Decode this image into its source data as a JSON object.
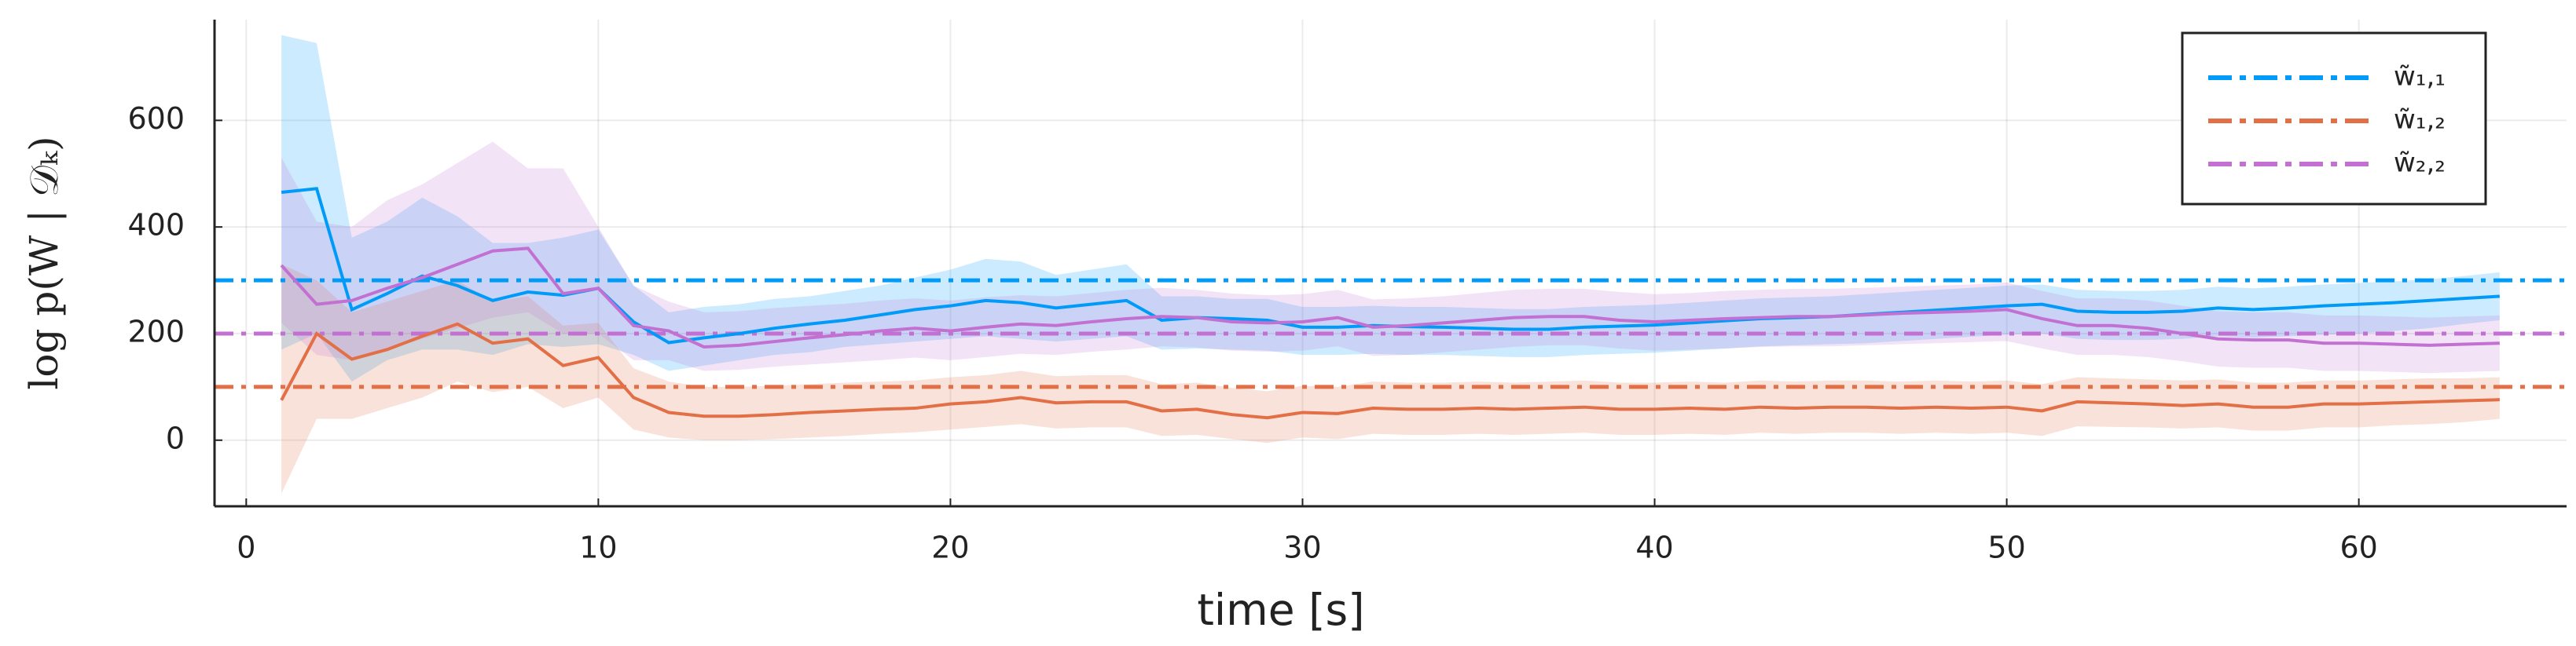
{
  "chart_data": {
    "type": "line",
    "xlabel": "time [s]",
    "ylabel": "log p(W | 𝒟ₖ)",
    "xlim": [
      -0.9,
      65.9
    ],
    "ylim": [
      -124,
      789
    ],
    "xticks": [
      0,
      10,
      20,
      30,
      40,
      50,
      60
    ],
    "yticks": [
      0,
      200,
      400,
      600
    ],
    "grid": true,
    "legend": "top-right",
    "x": [
      1,
      2,
      3,
      4,
      5,
      6,
      7,
      8,
      9,
      10,
      11,
      12,
      13,
      14,
      15,
      16,
      17,
      18,
      19,
      20,
      21,
      22,
      23,
      24,
      25,
      26,
      27,
      28,
      29,
      30,
      31,
      32,
      33,
      34,
      35,
      36,
      37,
      38,
      39,
      40,
      41,
      42,
      43,
      44,
      45,
      46,
      47,
      48,
      49,
      50,
      51,
      52,
      53,
      54,
      55,
      56,
      57,
      58,
      59,
      60,
      61,
      62,
      63,
      64
    ],
    "series": [
      {
        "color": "#009af9",
        "values": [
          465,
          472,
          245,
          275,
          308,
          290,
          262,
          278,
          272,
          285,
          222,
          183,
          192,
          200,
          210,
          218,
          225,
          235,
          245,
          252,
          262,
          258,
          248,
          255,
          262,
          225,
          230,
          228,
          225,
          212,
          212,
          215,
          213,
          212,
          210,
          208,
          208,
          212,
          214,
          216,
          220,
          224,
          228,
          230,
          232,
          236,
          240,
          244,
          248,
          252,
          255,
          242,
          240,
          240,
          242,
          248,
          245,
          248,
          252,
          255,
          258,
          262,
          266,
          270
        ],
        "upper": [
          760,
          745,
          380,
          410,
          455,
          420,
          370,
          370,
          380,
          395,
          290,
          240,
          250,
          255,
          265,
          270,
          280,
          290,
          305,
          320,
          340,
          335,
          310,
          320,
          330,
          270,
          270,
          265,
          265,
          250,
          250,
          252,
          250,
          250,
          248,
          246,
          246,
          250,
          252,
          254,
          258,
          262,
          266,
          268,
          270,
          274,
          278,
          282,
          286,
          290,
          292,
          282,
          280,
          280,
          282,
          288,
          285,
          288,
          292,
          295,
          298,
          302,
          308,
          315
        ],
        "lower": [
          170,
          200,
          110,
          150,
          170,
          170,
          160,
          180,
          175,
          180,
          160,
          130,
          140,
          150,
          160,
          165,
          175,
          180,
          185,
          190,
          195,
          190,
          185,
          190,
          195,
          170,
          172,
          170,
          168,
          160,
          160,
          162,
          160,
          160,
          158,
          156,
          156,
          160,
          162,
          164,
          168,
          172,
          176,
          178,
          180,
          182,
          186,
          190,
          194,
          198,
          200,
          190,
          188,
          188,
          190,
          195,
          192,
          195,
          198,
          200,
          205,
          210,
          218,
          225
        ]
      },
      {
        "color": "#e26f46",
        "values": [
          75,
          200,
          152,
          170,
          195,
          218,
          182,
          190,
          140,
          155,
          80,
          52,
          45,
          45,
          48,
          52,
          55,
          58,
          60,
          68,
          72,
          80,
          70,
          72,
          72,
          55,
          58,
          48,
          42,
          52,
          50,
          60,
          58,
          58,
          60,
          58,
          60,
          62,
          58,
          58,
          60,
          58,
          62,
          60,
          62,
          62,
          60,
          62,
          60,
          62,
          55,
          72,
          70,
          68,
          65,
          68,
          62,
          62,
          68,
          68,
          70,
          72,
          74,
          76
        ],
        "upper": [
          330,
          300,
          240,
          260,
          280,
          300,
          260,
          270,
          215,
          220,
          135,
          110,
          100,
          100,
          102,
          105,
          108,
          110,
          112,
          118,
          122,
          130,
          120,
          122,
          122,
          105,
          108,
          98,
          92,
          102,
          100,
          110,
          108,
          108,
          110,
          108,
          110,
          112,
          108,
          108,
          110,
          108,
          112,
          110,
          112,
          112,
          110,
          112,
          110,
          112,
          105,
          118,
          116,
          114,
          112,
          114,
          108,
          108,
          112,
          112,
          114,
          116,
          116,
          118
        ],
        "lower": [
          -100,
          40,
          40,
          60,
          80,
          110,
          90,
          100,
          60,
          80,
          20,
          5,
          0,
          0,
          2,
          5,
          8,
          12,
          15,
          20,
          25,
          30,
          22,
          24,
          24,
          8,
          10,
          2,
          -5,
          5,
          2,
          12,
          10,
          10,
          12,
          10,
          12,
          14,
          10,
          10,
          12,
          10,
          14,
          12,
          14,
          14,
          12,
          14,
          12,
          14,
          8,
          26,
          25,
          24,
          22,
          24,
          18,
          18,
          24,
          24,
          28,
          30,
          34,
          40
        ]
      },
      {
        "color": "#c271d2",
        "values": [
          328,
          255,
          262,
          285,
          305,
          330,
          355,
          360,
          275,
          285,
          215,
          205,
          175,
          178,
          185,
          192,
          198,
          205,
          210,
          205,
          212,
          218,
          215,
          222,
          228,
          232,
          230,
          222,
          220,
          222,
          230,
          212,
          215,
          220,
          225,
          230,
          232,
          232,
          225,
          222,
          225,
          228,
          230,
          232,
          232,
          235,
          238,
          240,
          242,
          245,
          228,
          215,
          215,
          210,
          200,
          190,
          188,
          188,
          182,
          182,
          180,
          178,
          180,
          182
        ],
        "upper": [
          530,
          410,
          400,
          450,
          480,
          520,
          560,
          510,
          510,
          400,
          290,
          260,
          240,
          242,
          248,
          252,
          256,
          262,
          266,
          262,
          268,
          272,
          270,
          276,
          282,
          286,
          282,
          275,
          272,
          274,
          282,
          264,
          266,
          270,
          276,
          282,
          284,
          284,
          278,
          274,
          276,
          280,
          282,
          284,
          284,
          286,
          288,
          290,
          292,
          296,
          280,
          266,
          266,
          262,
          252,
          242,
          240,
          240,
          234,
          234,
          232,
          230,
          232,
          234
        ],
        "lower": [
          220,
          160,
          150,
          170,
          190,
          210,
          230,
          240,
          200,
          200,
          150,
          150,
          130,
          132,
          138,
          142,
          146,
          150,
          155,
          150,
          156,
          162,
          160,
          166,
          170,
          176,
          174,
          168,
          166,
          168,
          176,
          158,
          160,
          165,
          170,
          175,
          178,
          178,
          172,
          168,
          170,
          172,
          175,
          176,
          176,
          178,
          180,
          182,
          184,
          186,
          172,
          160,
          160,
          156,
          148,
          138,
          136,
          136,
          130,
          130,
          128,
          126,
          128,
          130
        ]
      }
    ],
    "hlines": [
      {
        "name": "w̃₁,₁",
        "color": "#009af9",
        "value": 300
      },
      {
        "name": "w̃₁,₂",
        "color": "#e26f46",
        "value": 100
      },
      {
        "name": "w̃₂,₂",
        "color": "#c271d2",
        "value": 200
      }
    ]
  }
}
